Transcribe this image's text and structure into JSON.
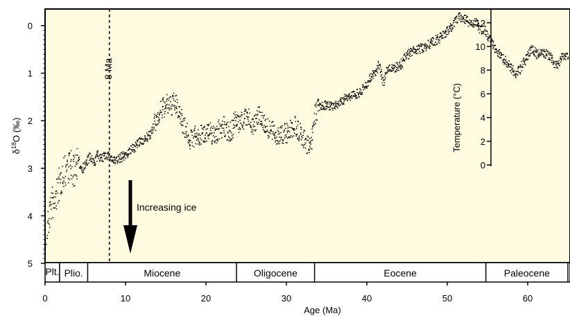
{
  "chart_data": {
    "type": "scatter",
    "xlabel": "Age (Ma)",
    "ylabel": "δ18O (‰)",
    "ylabel_base": "δ",
    "ylabel_sup": "18",
    "ylabel_tail": "O (‰)",
    "y2label": "Temperature (°C)",
    "xlim": [
      0,
      65
    ],
    "ylim": [
      5,
      -0.35
    ],
    "x_ticks": [
      0,
      10,
      20,
      30,
      40,
      50,
      60
    ],
    "y_ticks": [
      0,
      1,
      2,
      3,
      4,
      5
    ],
    "y2_ticks": [
      0,
      2,
      4,
      6,
      8,
      10,
      12
    ],
    "colors": {
      "background": "#fffbe0",
      "points": "#111111"
    },
    "annotations": {
      "marker_label": "8 Ma",
      "marker_x": 8,
      "arrow_text": "Increasing ice"
    },
    "epochs": [
      {
        "label": "Plt.",
        "from": 0,
        "to": 1.8
      },
      {
        "label": "Plio.",
        "from": 1.8,
        "to": 5.3
      },
      {
        "label": "Miocene",
        "from": 5.3,
        "to": 23.8
      },
      {
        "label": "Oligocene",
        "from": 23.8,
        "to": 33.5
      },
      {
        "label": "Eocene",
        "from": 33.5,
        "to": 54.8
      },
      {
        "label": "Paleocene",
        "from": 54.8,
        "to": 65
      }
    ],
    "series": [
      {
        "x": [
          0,
          0.2,
          0.5,
          0.8,
          1,
          1.3,
          1.6,
          2,
          2.5,
          3,
          3.5,
          4,
          4.5,
          5,
          5.5,
          6,
          6.5,
          7,
          7.5,
          8,
          8.5,
          9,
          10,
          11,
          12,
          13,
          13.5,
          14,
          14.5,
          15,
          15.5,
          16,
          16.5,
          17,
          17.5,
          18,
          18.5,
          19,
          20,
          21,
          22,
          23,
          23.5,
          24,
          25,
          26,
          26.5,
          27,
          28,
          29,
          30,
          31,
          32,
          33,
          33.5,
          34,
          35,
          36,
          37,
          38,
          39,
          40,
          40.5,
          41,
          41.5,
          42,
          42.5,
          43,
          44,
          45,
          46,
          47,
          48,
          49,
          50,
          50.5,
          51,
          51.5,
          52,
          53,
          53.5,
          54,
          54.5,
          55,
          55.5,
          56,
          57,
          57.5,
          58,
          58.5,
          59,
          60,
          60.5,
          61,
          62,
          63,
          63.5,
          64,
          65
        ],
        "y": [
          4.7,
          4.3,
          3.9,
          3.7,
          3.8,
          3.6,
          3.4,
          3.2,
          3.0,
          2.9,
          3.1,
          2.8,
          3.0,
          2.9,
          2.75,
          2.9,
          2.7,
          2.8,
          2.7,
          2.75,
          2.85,
          2.8,
          2.7,
          2.55,
          2.4,
          2.3,
          2.1,
          1.9,
          1.75,
          1.65,
          1.7,
          1.6,
          1.75,
          2.0,
          2.2,
          2.4,
          2.3,
          2.35,
          2.2,
          2.3,
          2.1,
          2.25,
          2.0,
          2.05,
          1.9,
          2.1,
          1.8,
          2.0,
          2.2,
          2.3,
          2.25,
          2.1,
          2.35,
          2.6,
          1.85,
          1.7,
          1.65,
          1.7,
          1.55,
          1.45,
          1.4,
          1.2,
          1.05,
          1.0,
          0.8,
          1.2,
          0.9,
          0.9,
          0.85,
          0.6,
          0.5,
          0.45,
          0.35,
          0.25,
          0.1,
          0.0,
          -0.1,
          -0.2,
          -0.15,
          -0.05,
          -0.1,
          0.1,
          0.05,
          0.2,
          0.35,
          0.5,
          0.7,
          0.8,
          0.9,
          1.0,
          0.9,
          0.6,
          0.45,
          0.6,
          0.55,
          0.7,
          0.85,
          0.7,
          0.6
        ]
      }
    ]
  }
}
